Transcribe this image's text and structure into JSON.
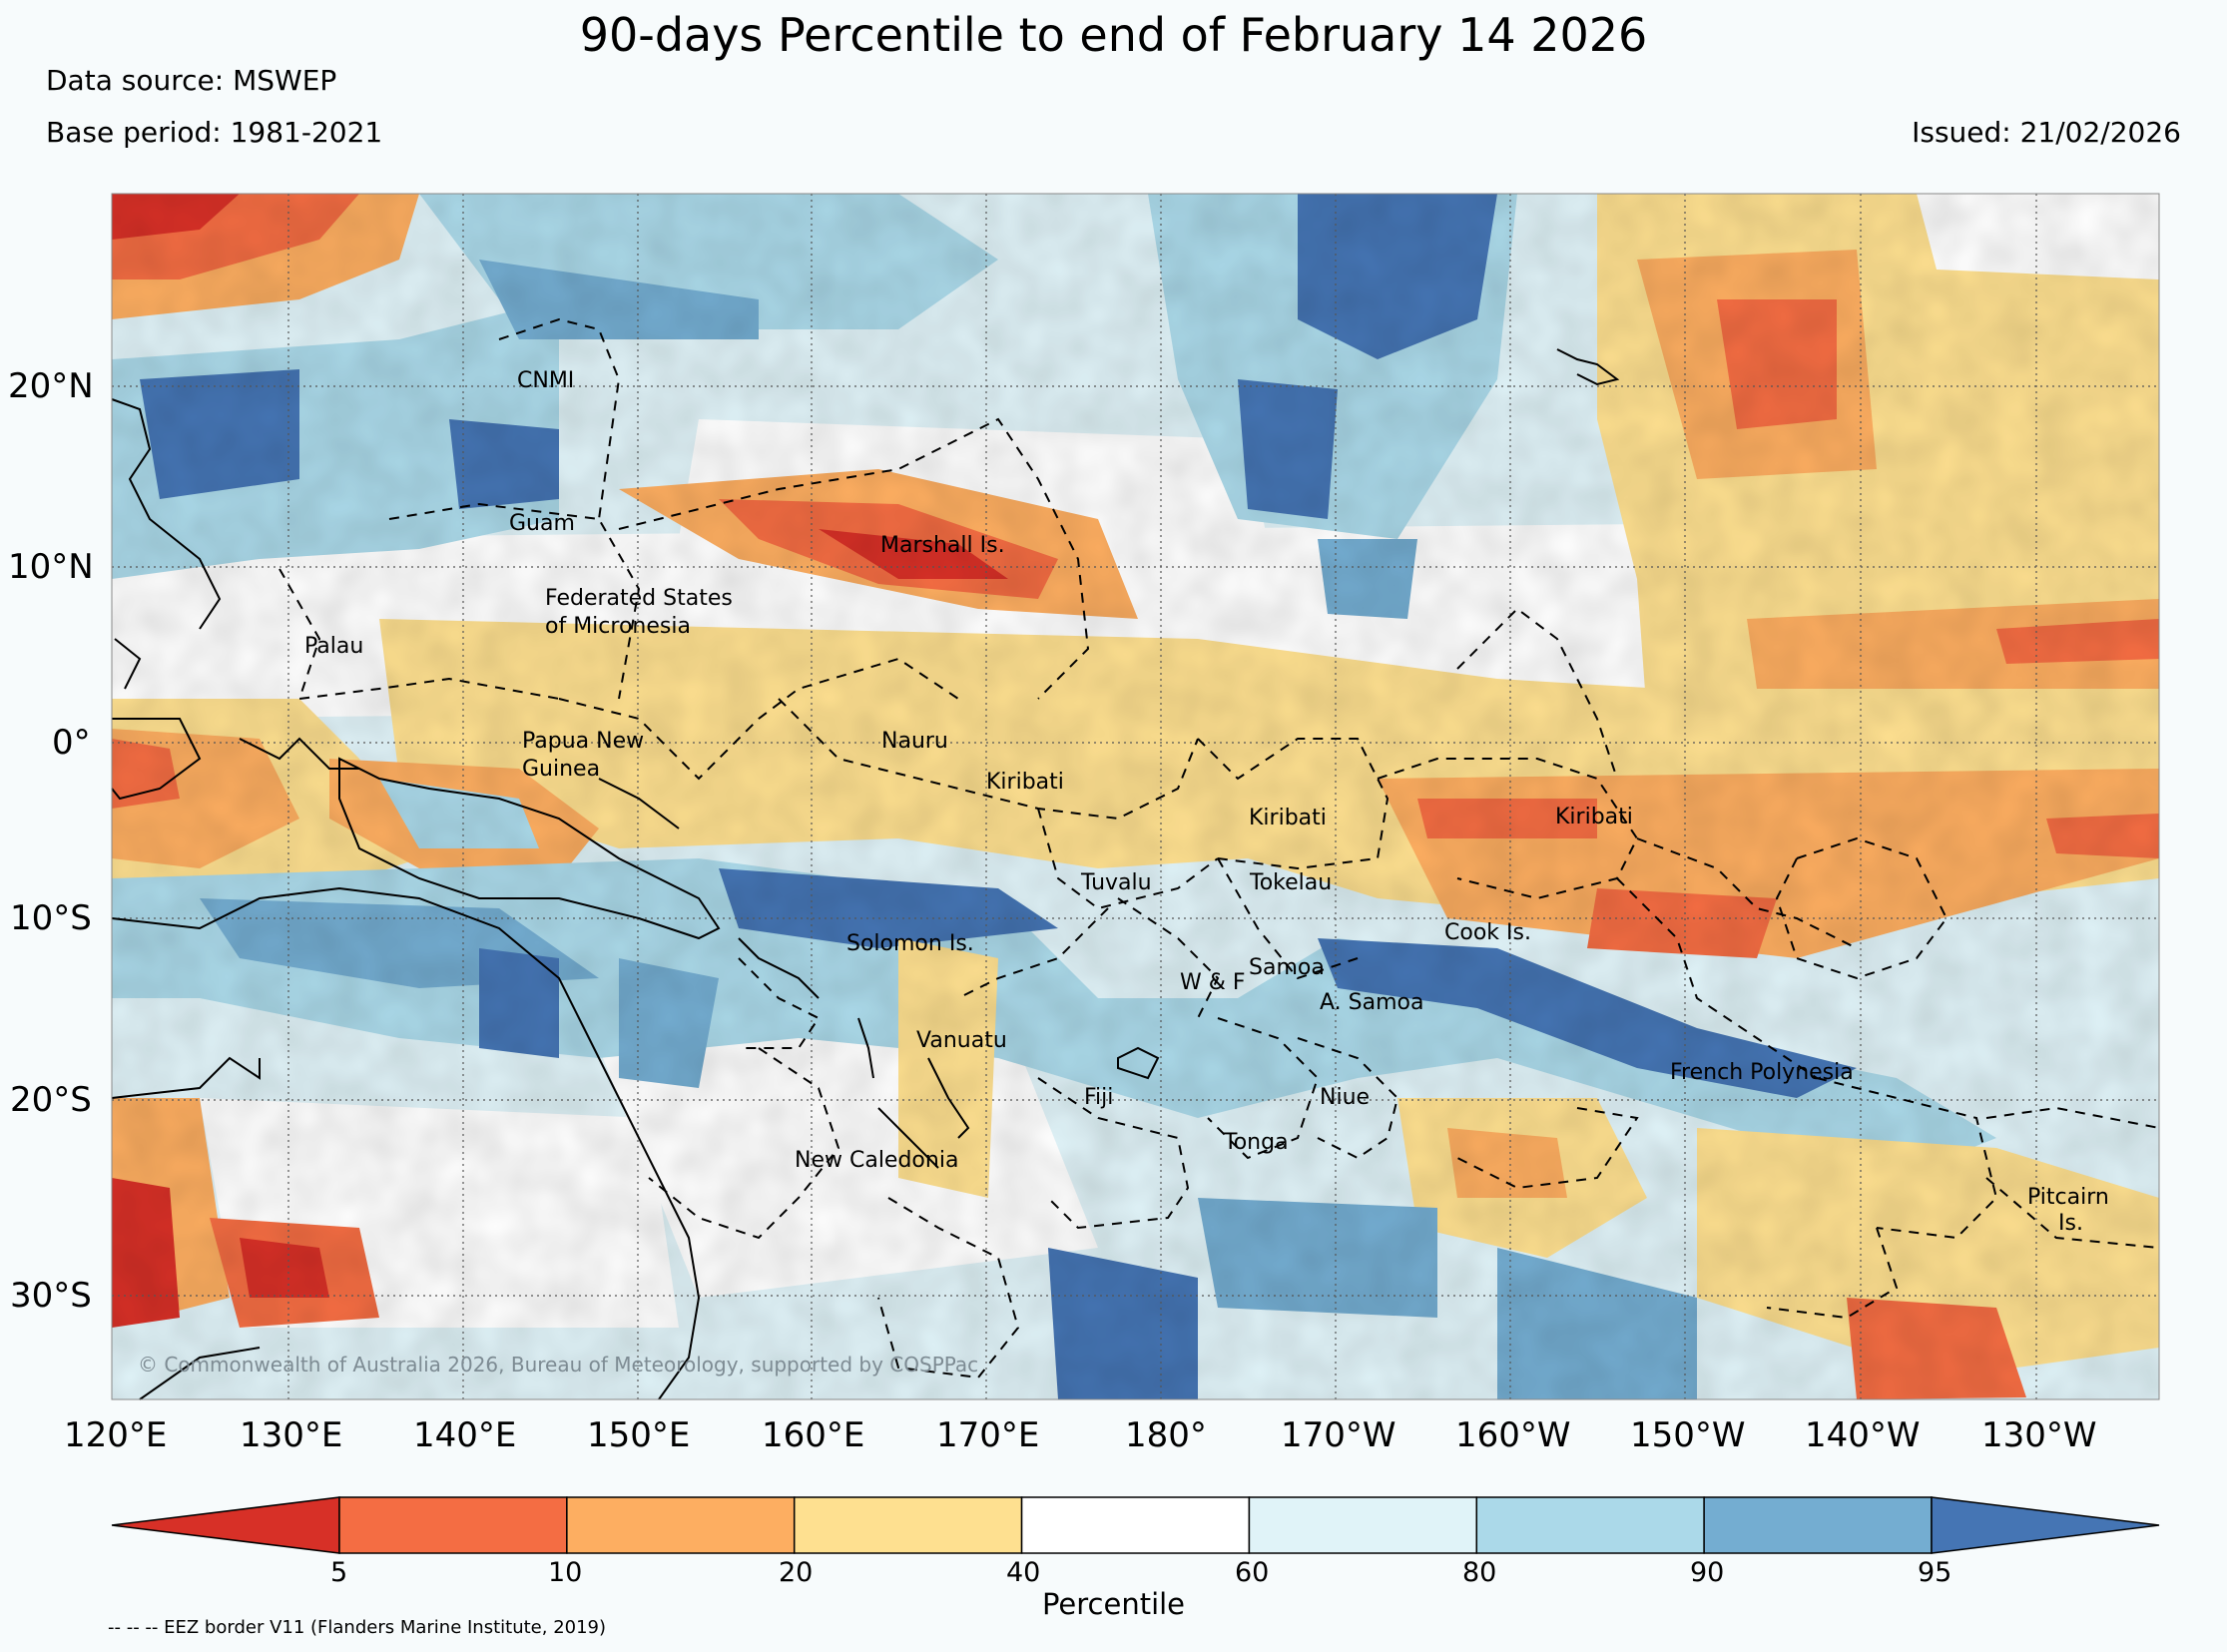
{
  "title": "90-days Percentile to end of February 14 2026",
  "data_source": "Data source: MSWEP",
  "base_period": "Base period: 1981-2021",
  "issued": "Issued: 21/02/2026",
  "copyright": "© Commonwealth of Australia 2026, Bureau of Meteorology, supported by COSPPac",
  "eez_note": "-- -- -- EEZ border V11 (Flanders Marine Institute, 2019)",
  "lat_ticks": [
    "20°N",
    "10°N",
    "0°",
    "10°S",
    "20°S",
    "30°S"
  ],
  "lon_ticks": [
    "120°E",
    "130°E",
    "140°E",
    "150°E",
    "160°E",
    "170°E",
    "180°",
    "170°W",
    "160°W",
    "150°W",
    "140°W",
    "130°W"
  ],
  "places": [
    {
      "name": "CNMI"
    },
    {
      "name": "Guam"
    },
    {
      "name": "Marshall Is."
    },
    {
      "name": "Federated States",
      "name2": "of Micronesia"
    },
    {
      "name": "Palau"
    },
    {
      "name": "Papua New",
      "name2": "Guinea"
    },
    {
      "name": "Nauru"
    },
    {
      "name": "Kiribati"
    },
    {
      "name": "Kiribati"
    },
    {
      "name": "Kiribati"
    },
    {
      "name": "Tuvalu"
    },
    {
      "name": "Tokelau"
    },
    {
      "name": "Cook Is."
    },
    {
      "name": "Solomon Is."
    },
    {
      "name": "Samoa"
    },
    {
      "name": "W & F"
    },
    {
      "name": "A. Samoa"
    },
    {
      "name": "Vanuatu"
    },
    {
      "name": "Fiji"
    },
    {
      "name": "Niue"
    },
    {
      "name": "Tonga"
    },
    {
      "name": "New Caledonia"
    },
    {
      "name": "French Polynesia"
    },
    {
      "name": "Pitcairn",
      "name2": "Is."
    }
  ],
  "colorbar": {
    "label": "Percentile",
    "ticks": [
      "5",
      "10",
      "20",
      "40",
      "60",
      "80",
      "90",
      "95"
    ],
    "colors": [
      "#d73027",
      "#f46d43",
      "#fdae61",
      "#fee090",
      "#ffffff",
      "#e0f3f8",
      "#abd9e9",
      "#74add1",
      "#4575b4"
    ]
  },
  "chart_data": {
    "type": "heatmap",
    "title": "90-days Percentile to end of February 14 2026",
    "variable": "Percentile",
    "x_range_deg": [
      120,
      235
    ],
    "y_range_deg": [
      -36,
      30
    ],
    "levels": [
      5,
      10,
      20,
      40,
      60,
      80,
      90,
      95
    ],
    "palette": [
      "#d73027",
      "#f46d43",
      "#fdae61",
      "#fee090",
      "#ffffff",
      "#e0f3f8",
      "#abd9e9",
      "#74add1",
      "#4575b4"
    ]
  }
}
